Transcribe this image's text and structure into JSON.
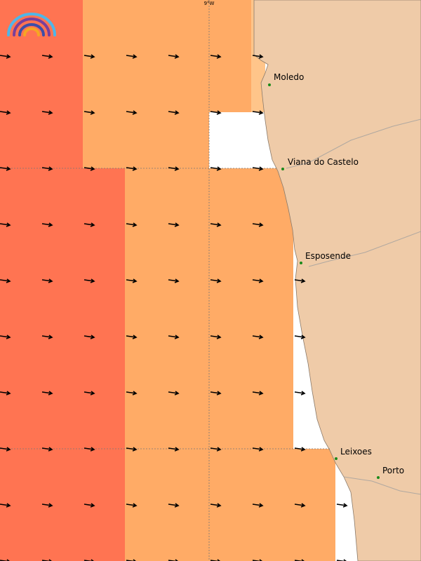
{
  "map": {
    "meridian_label": "9°W",
    "places": [
      {
        "name": "Moledo"
      },
      {
        "name": "Viana do Castelo"
      },
      {
        "name": "Esposende"
      },
      {
        "name": "Leixoes"
      },
      {
        "name": "Porto"
      }
    ]
  }
}
